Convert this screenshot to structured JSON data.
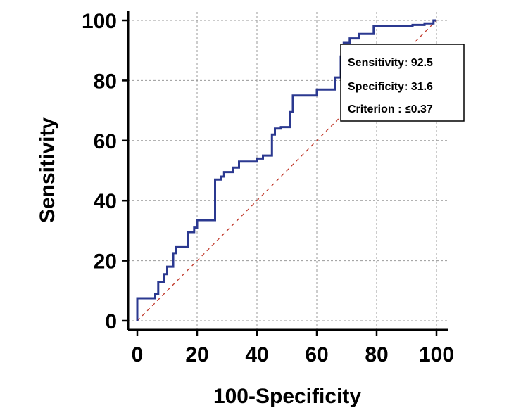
{
  "chart_data": {
    "type": "line",
    "title": "",
    "xlabel": "100-Specificity",
    "ylabel": "Sensitivity",
    "xlim": [
      0,
      100
    ],
    "ylim": [
      0,
      100
    ],
    "x_ticks": [
      "0",
      "20",
      "40",
      "60",
      "80",
      "100"
    ],
    "y_ticks": [
      "0",
      "20",
      "40",
      "60",
      "80",
      "100"
    ],
    "grid": true,
    "reference_line": {
      "from": [
        0,
        0
      ],
      "to": [
        100,
        100
      ],
      "style": "dashed",
      "color": "#c0392b"
    },
    "series": [
      {
        "color": "#2b3990",
        "x": [
          0,
          0,
          6,
          6,
          7,
          7,
          9,
          9,
          10,
          10,
          12,
          12,
          13,
          13,
          17,
          17,
          19,
          19,
          20,
          20,
          26,
          26,
          28,
          28,
          29,
          29,
          32,
          32,
          34,
          34,
          40,
          40,
          42,
          42,
          45,
          45,
          46,
          46,
          48,
          48,
          51,
          51,
          52,
          52,
          60,
          60,
          66,
          66,
          68,
          68,
          69,
          69,
          71,
          71,
          74,
          74,
          79,
          79,
          92,
          92,
          96,
          96,
          99,
          99,
          100
        ],
        "y": [
          0,
          7.5,
          7.5,
          9,
          9,
          13,
          13,
          15.5,
          15.5,
          18,
          18,
          22.5,
          22.5,
          24.5,
          24.5,
          29.5,
          29.5,
          31,
          31,
          33.5,
          33.5,
          47,
          47,
          48,
          48,
          49.5,
          49.5,
          51,
          51,
          53,
          53,
          54,
          54,
          55,
          55,
          62,
          62,
          64,
          64,
          64.5,
          64.5,
          69.5,
          69.5,
          75,
          75,
          77,
          77,
          81,
          81,
          88,
          88,
          92.5,
          92.5,
          94,
          94,
          95.5,
          95.5,
          98,
          98,
          98.5,
          98.5,
          99,
          99,
          100,
          100
        ]
      }
    ],
    "annotation": {
      "lines": [
        "Sensitivity: 92.5",
        "Specificity: 31.6",
        "Criterion : ≤0.37"
      ],
      "position": "top-right"
    }
  }
}
